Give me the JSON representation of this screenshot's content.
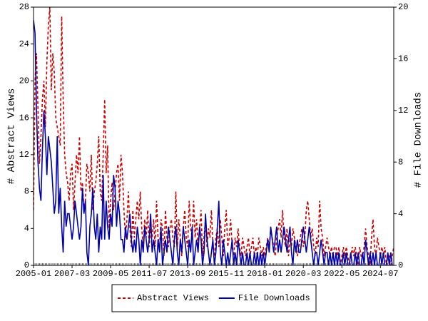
{
  "chart_data": {
    "type": "line",
    "ylabel": "# Abstract Views",
    "y2label": "# File Downloads",
    "ylim": [
      0,
      28
    ],
    "yticks": [
      0,
      4,
      8,
      12,
      16,
      20,
      24,
      28
    ],
    "y2lim": [
      0,
      20
    ],
    "y2ticks": [
      0,
      4,
      8,
      12,
      16,
      20
    ],
    "legend": "bottom",
    "xticks": [
      "2005-01",
      "2007-03",
      "2009-05",
      "2011-07",
      "2013-09",
      "2015-11",
      "2018-01",
      "2020-03",
      "2022-05",
      "2024-07"
    ],
    "x": [
      "2005-01",
      "2005-02",
      "2005-03",
      "2005-04",
      "2005-05",
      "2005-06",
      "2005-07",
      "2005-08",
      "2005-09",
      "2005-10",
      "2005-11",
      "2005-12",
      "2006-01",
      "2006-02",
      "2006-03",
      "2006-04",
      "2006-05",
      "2006-06",
      "2006-07",
      "2006-08",
      "2006-09",
      "2006-10",
      "2006-11",
      "2006-12",
      "2007-01",
      "2007-02",
      "2007-03",
      "2007-04",
      "2007-05",
      "2007-06",
      "2007-07",
      "2007-08",
      "2007-09",
      "2007-10",
      "2007-11",
      "2007-12",
      "2008-01",
      "2008-02",
      "2008-03",
      "2008-04",
      "2008-05",
      "2008-06",
      "2008-07",
      "2008-08",
      "2008-09",
      "2008-10",
      "2008-11",
      "2008-12",
      "2009-01",
      "2009-02",
      "2009-03",
      "2009-04",
      "2009-05",
      "2009-06",
      "2009-07",
      "2009-08",
      "2009-09",
      "2009-10",
      "2009-11",
      "2009-12",
      "2010-01",
      "2010-02",
      "2010-03",
      "2010-04",
      "2010-05",
      "2010-06",
      "2010-07",
      "2010-08",
      "2010-09",
      "2010-10",
      "2010-11",
      "2010-12",
      "2011-01",
      "2011-02",
      "2011-03",
      "2011-04",
      "2011-05",
      "2011-06",
      "2011-07",
      "2011-08",
      "2011-09",
      "2011-10",
      "2011-11",
      "2011-12",
      "2012-01",
      "2012-02",
      "2012-03",
      "2012-04",
      "2012-05",
      "2012-06",
      "2012-07",
      "2012-08",
      "2012-09",
      "2012-10",
      "2012-11",
      "2012-12",
      "2013-01",
      "2013-02",
      "2013-03",
      "2013-04",
      "2013-05",
      "2013-06",
      "2013-07",
      "2013-08",
      "2013-09",
      "2013-10",
      "2013-11",
      "2013-12",
      "2014-01",
      "2014-02",
      "2014-03",
      "2014-04",
      "2014-05",
      "2014-06",
      "2014-07",
      "2014-08",
      "2014-09",
      "2014-10",
      "2014-11",
      "2014-12",
      "2015-01",
      "2015-02",
      "2015-03",
      "2015-04",
      "2015-05",
      "2015-06",
      "2015-07",
      "2015-08",
      "2015-09",
      "2015-10",
      "2015-11",
      "2015-12",
      "2016-01",
      "2016-02",
      "2016-03",
      "2016-04",
      "2016-05",
      "2016-06",
      "2016-07",
      "2016-08",
      "2016-09",
      "2016-10",
      "2016-11",
      "2016-12",
      "2017-01",
      "2017-02",
      "2017-03",
      "2017-04",
      "2017-05",
      "2017-06",
      "2017-07",
      "2017-08",
      "2017-09",
      "2017-10",
      "2017-11",
      "2017-12",
      "2018-01",
      "2018-02",
      "2018-03",
      "2018-04",
      "2018-05",
      "2018-06",
      "2018-07",
      "2018-08",
      "2018-09",
      "2018-10",
      "2018-11",
      "2018-12",
      "2019-01",
      "2019-02",
      "2019-03",
      "2019-04",
      "2019-05",
      "2019-06",
      "2019-07",
      "2019-08",
      "2019-09",
      "2019-10",
      "2019-11",
      "2019-12",
      "2020-01",
      "2020-02",
      "2020-03",
      "2020-04",
      "2020-05",
      "2020-06",
      "2020-07",
      "2020-08",
      "2020-09",
      "2020-10",
      "2020-11",
      "2020-12",
      "2021-01",
      "2021-02",
      "2021-03",
      "2021-04",
      "2021-05",
      "2021-06",
      "2021-07",
      "2021-08",
      "2021-09",
      "2021-10",
      "2021-11",
      "2021-12",
      "2022-01",
      "2022-02",
      "2022-03",
      "2022-04",
      "2022-05",
      "2022-06",
      "2022-07",
      "2022-08",
      "2022-09",
      "2022-10",
      "2022-11",
      "2022-12",
      "2023-01",
      "2023-02",
      "2023-03",
      "2023-04",
      "2023-05",
      "2023-06",
      "2023-07",
      "2023-08",
      "2023-09",
      "2023-10",
      "2023-11",
      "2023-12",
      "2024-01",
      "2024-02",
      "2024-03",
      "2024-04",
      "2024-05",
      "2024-06",
      "2024-07",
      "2024-08",
      "2024-09",
      "2024-10",
      "2024-11",
      "2024-12",
      "2025-01",
      "2025-02",
      "2025-03",
      "2025-04"
    ],
    "series": [
      {
        "name": "Abstract Views",
        "color": "#cc0000",
        "dash": "4,3",
        "axis": "y",
        "values": [
          6,
          20,
          23,
          17,
          11,
          14,
          18,
          20,
          15,
          22,
          26,
          28,
          19,
          23,
          21,
          16,
          15,
          14,
          13,
          27,
          18,
          12,
          10,
          9,
          7,
          10,
          11,
          6,
          9,
          12,
          10,
          14,
          8,
          9,
          6,
          7,
          11,
          10,
          8,
          12,
          6,
          8,
          9,
          11,
          14,
          8,
          7,
          12,
          18,
          10,
          13,
          4,
          7,
          9,
          6,
          8,
          10,
          11,
          7,
          12,
          10,
          6,
          3,
          5,
          8,
          4,
          2,
          6,
          3,
          5,
          7,
          5,
          8,
          4,
          2,
          5,
          3,
          6,
          2,
          4,
          3,
          5,
          2,
          7,
          3,
          2,
          5,
          4,
          1,
          6,
          3,
          2,
          4,
          5,
          3,
          2,
          8,
          2,
          5,
          3,
          1,
          4,
          6,
          3,
          2,
          7,
          4,
          3,
          7,
          3,
          5,
          2,
          4,
          6,
          1,
          3,
          5,
          2,
          4,
          3,
          6,
          2,
          1,
          3,
          4,
          2,
          5,
          3,
          1,
          4,
          6,
          2,
          3,
          5,
          2,
          1,
          3,
          2,
          4,
          2,
          1,
          3,
          2,
          1,
          2,
          3,
          1,
          2,
          3,
          1,
          2,
          1,
          3,
          2,
          1,
          2,
          1,
          2,
          3,
          2,
          4,
          3,
          2,
          1,
          3,
          4,
          5,
          3,
          6,
          3,
          2,
          4,
          1,
          3,
          2,
          4,
          3,
          2,
          1,
          2,
          3,
          4,
          2,
          3,
          6,
          7,
          5,
          3,
          4,
          2,
          1,
          3,
          2,
          7,
          4,
          3,
          1,
          2,
          3,
          2,
          1,
          2,
          1,
          2,
          2,
          1,
          2,
          0,
          1,
          2,
          1,
          2,
          1,
          0,
          1,
          2,
          1,
          2,
          1,
          0,
          2,
          1,
          1,
          2,
          4,
          2,
          1,
          0,
          3,
          5,
          2,
          1,
          3,
          2,
          1,
          2,
          1,
          2,
          0,
          1,
          1,
          0,
          1,
          2
        ]
      },
      {
        "name": "File Downloads",
        "color": "#0000aa",
        "axis": "y2",
        "values": [
          19,
          18,
          12,
          8,
          6,
          5,
          9,
          12,
          10,
          7,
          10,
          9,
          8,
          6,
          4,
          5,
          10,
          4,
          6,
          3,
          1,
          5,
          3,
          4,
          4,
          3,
          2,
          3,
          5,
          4,
          3,
          2,
          3,
          6,
          4,
          5,
          1,
          0,
          3,
          4,
          6,
          3,
          2,
          4,
          1,
          3,
          2,
          7,
          2,
          5,
          3,
          2,
          4,
          3,
          7,
          6,
          3,
          5,
          4,
          2,
          2,
          1,
          3,
          2,
          3,
          4,
          2,
          1,
          2,
          1,
          3,
          2,
          0,
          2,
          1,
          3,
          2,
          1,
          2,
          4,
          1,
          2,
          1,
          0,
          2,
          1,
          3,
          0,
          1,
          2,
          1,
          3,
          2,
          1,
          0,
          2,
          3,
          1,
          0,
          2,
          1,
          3,
          2,
          1,
          0,
          2,
          1,
          3,
          0,
          1,
          2,
          1,
          3,
          2,
          0,
          1,
          4,
          2,
          1,
          0,
          1,
          2,
          0,
          1,
          3,
          5,
          1,
          0,
          2,
          1,
          0,
          1,
          0,
          1,
          2,
          0,
          1,
          0,
          2,
          1,
          0,
          1,
          0,
          0,
          1,
          0,
          1,
          0,
          0,
          1,
          0,
          1,
          0,
          1,
          0,
          1,
          0,
          1,
          2,
          1,
          3,
          2,
          1,
          2,
          3,
          1,
          2,
          1,
          2,
          3,
          2,
          1,
          2,
          3,
          1,
          0,
          2,
          1,
          2,
          1,
          1,
          2,
          3,
          2,
          1,
          2,
          3,
          2,
          1,
          0,
          1,
          1,
          0,
          1,
          2,
          1,
          0,
          1,
          1,
          0,
          1,
          0,
          1,
          0,
          1,
          0,
          1,
          0,
          0,
          1,
          0,
          1,
          0,
          0,
          1,
          0,
          0,
          1,
          0,
          1,
          0,
          0,
          1,
          0,
          2,
          1,
          0,
          1,
          0,
          1,
          0,
          1,
          0,
          0,
          1,
          0,
          1,
          0,
          0,
          1,
          0,
          1,
          0,
          0
        ]
      }
    ]
  }
}
